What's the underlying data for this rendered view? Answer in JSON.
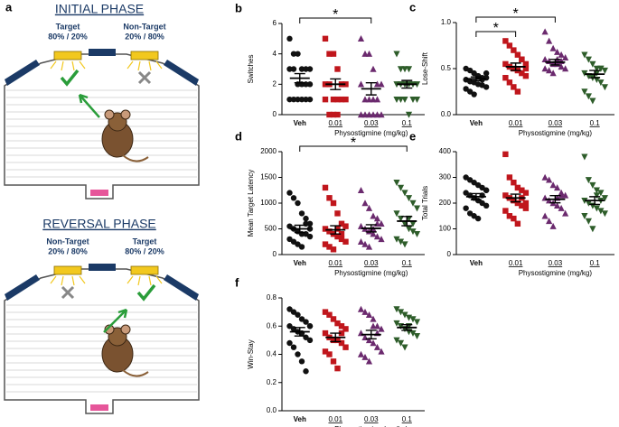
{
  "panel_a": {
    "letter": "a",
    "initial": {
      "title": "INITIAL PHASE",
      "left_label": "Target",
      "left_ratio": "80% / 20%",
      "right_label": "Non-Target",
      "right_ratio": "20% / 80%"
    },
    "reversal": {
      "title": "REVERSAL PHASE",
      "left_label": "Non-Target",
      "left_ratio": "20% / 80%",
      "right_label": "Target",
      "right_ratio": "80% / 20%"
    }
  },
  "chart_data": [
    {
      "type": "strip",
      "panel": "b",
      "ylabel": "Switches",
      "xlabel": "Physostigmine  (mg/kg)",
      "categories": [
        "Veh",
        "0.01",
        "0.03",
        "0.1"
      ],
      "colors": [
        "#111111",
        "#c0161c",
        "#6b2a6e",
        "#2e5d2a"
      ],
      "markers": [
        "circle",
        "square",
        "triangle",
        "triangle-down"
      ],
      "ylim": [
        0,
        6
      ],
      "yticks": [
        0,
        2,
        4,
        6
      ],
      "points": [
        [
          5,
          4,
          4,
          3,
          3,
          3,
          3,
          3,
          2,
          2,
          2,
          2,
          1,
          1,
          1,
          1,
          1,
          1
        ],
        [
          5,
          4,
          4,
          3,
          2,
          2,
          2,
          2,
          1,
          1,
          1,
          1,
          1,
          0,
          0,
          0
        ],
        [
          5,
          4,
          4,
          3,
          2,
          2,
          2,
          1,
          1,
          1,
          1,
          0,
          0,
          0,
          0,
          0,
          0
        ],
        [
          4,
          3,
          3,
          3,
          2,
          2,
          2,
          2,
          2,
          2,
          1,
          1,
          1,
          1,
          1,
          0
        ]
      ],
      "means": [
        2.4,
        2.0,
        1.7,
        2.0
      ],
      "sems": [
        0.3,
        0.35,
        0.4,
        0.25
      ],
      "annotations": [
        {
          "label": "*",
          "from": "Veh",
          "to": "0.03"
        }
      ]
    },
    {
      "type": "strip",
      "panel": "c",
      "ylabel": "Lose-Shift",
      "xlabel": "Physostigmine  (mg/kg)",
      "categories": [
        "Veh",
        "0.01",
        "0.03",
        "0.1"
      ],
      "colors": [
        "#111111",
        "#c0161c",
        "#6b2a6e",
        "#2e5d2a"
      ],
      "markers": [
        "circle",
        "square",
        "triangle",
        "triangle-down"
      ],
      "ylim": [
        0,
        1
      ],
      "yticks": [
        {
          "value": 0,
          "label": "0.0"
        },
        0.5,
        {
          "value": 1,
          "label": "1.0"
        }
      ],
      "points": [
        [
          0.5,
          0.48,
          0.45,
          0.42,
          0.4,
          0.4,
          0.38,
          0.36,
          0.35,
          0.33,
          0.32,
          0.3,
          0.28,
          0.25,
          0.22,
          0.42,
          0.38,
          0.45
        ],
        [
          0.8,
          0.75,
          0.7,
          0.65,
          0.6,
          0.55,
          0.55,
          0.52,
          0.5,
          0.48,
          0.45,
          0.42,
          0.4,
          0.35,
          0.3,
          0.25,
          0.6,
          0.5
        ],
        [
          0.9,
          0.8,
          0.72,
          0.68,
          0.65,
          0.62,
          0.6,
          0.58,
          0.55,
          0.55,
          0.52,
          0.5,
          0.5,
          0.48,
          0.45,
          0.6,
          0.58
        ],
        [
          0.65,
          0.6,
          0.55,
          0.5,
          0.5,
          0.48,
          0.45,
          0.42,
          0.4,
          0.38,
          0.35,
          0.3,
          0.25,
          0.2,
          0.15,
          0.45,
          0.5
        ]
      ],
      "means": [
        0.39,
        0.52,
        0.57,
        0.44
      ],
      "sems": [
        0.02,
        0.04,
        0.03,
        0.04
      ],
      "annotations": [
        {
          "label": "*",
          "from": "Veh",
          "to": "0.01"
        },
        {
          "label": "*",
          "from": "Veh",
          "to": "0.03"
        }
      ]
    },
    {
      "type": "strip",
      "panel": "d",
      "ylabel": "Mean Target Latency",
      "xlabel": "Physostigmine  (mg/kg)",
      "categories": [
        "Veh",
        "0.01",
        "0.03",
        "0.1"
      ],
      "colors": [
        "#111111",
        "#c0161c",
        "#6b2a6e",
        "#2e5d2a"
      ],
      "markers": [
        "circle",
        "square",
        "triangle",
        "triangle-down"
      ],
      "ylim": [
        0,
        2000
      ],
      "yticks": [
        0,
        500,
        1000,
        1500,
        2000
      ],
      "points": [
        [
          1200,
          1100,
          1000,
          800,
          700,
          600,
          550,
          500,
          450,
          400,
          400,
          350,
          300,
          250,
          200,
          150,
          600,
          500
        ],
        [
          1300,
          1100,
          1000,
          800,
          600,
          550,
          500,
          450,
          400,
          350,
          300,
          250,
          200,
          150,
          100,
          500,
          400
        ],
        [
          1250,
          1000,
          900,
          750,
          700,
          600,
          550,
          500,
          450,
          400,
          350,
          300,
          250,
          200,
          150,
          500,
          600
        ],
        [
          1400,
          1300,
          1200,
          1100,
          1000,
          900,
          800,
          700,
          600,
          500,
          450,
          400,
          300,
          250,
          200,
          700,
          600
        ]
      ],
      "means": [
        500,
        480,
        510,
        650
      ],
      "sems": [
        70,
        80,
        70,
        90
      ],
      "annotations": [
        {
          "label": "*",
          "from": "Veh",
          "to": "0.1"
        }
      ]
    },
    {
      "type": "strip",
      "panel": "e",
      "ylabel": "Total  Trials",
      "xlabel": "Physostigmine  (mg/kg)",
      "categories": [
        "Veh",
        "0.01",
        "0.03",
        "0.1"
      ],
      "colors": [
        "#111111",
        "#c0161c",
        "#6b2a6e",
        "#2e5d2a"
      ],
      "markers": [
        "circle",
        "square",
        "triangle",
        "triangle-down"
      ],
      "ylim": [
        0,
        400
      ],
      "yticks": [
        0,
        100,
        200,
        300,
        400
      ],
      "points": [
        [
          300,
          290,
          280,
          270,
          260,
          250,
          240,
          230,
          220,
          210,
          200,
          190,
          180,
          160,
          150,
          140,
          230,
          250
        ],
        [
          390,
          300,
          280,
          260,
          250,
          240,
          230,
          220,
          210,
          200,
          190,
          180,
          170,
          150,
          140,
          120,
          220,
          200
        ],
        [
          300,
          290,
          270,
          260,
          240,
          230,
          220,
          210,
          200,
          190,
          180,
          160,
          150,
          130,
          110,
          220,
          230
        ],
        [
          380,
          290,
          270,
          250,
          240,
          220,
          210,
          200,
          190,
          180,
          170,
          160,
          150,
          130,
          100,
          230,
          210
        ]
      ],
      "means": [
        225,
        220,
        215,
        210
      ],
      "sems": [
        12,
        15,
        14,
        15
      ],
      "annotations": []
    },
    {
      "type": "strip",
      "panel": "f",
      "ylabel": "Win-Stay",
      "xlabel": "Physostigmine  (mg/kg)",
      "categories": [
        "Veh",
        "0.01",
        "0.03",
        "0.1"
      ],
      "colors": [
        "#111111",
        "#c0161c",
        "#6b2a6e",
        "#2e5d2a"
      ],
      "markers": [
        "circle",
        "square",
        "triangle",
        "triangle-down"
      ],
      "ylim": [
        0,
        0.8
      ],
      "yticks": [
        {
          "value": 0,
          "label": "0.0"
        },
        0.2,
        0.4,
        0.6,
        0.8
      ],
      "points": [
        [
          0.72,
          0.7,
          0.68,
          0.65,
          0.63,
          0.6,
          0.6,
          0.58,
          0.56,
          0.55,
          0.52,
          0.5,
          0.48,
          0.45,
          0.4,
          0.35,
          0.28,
          0.6
        ],
        [
          0.7,
          0.68,
          0.65,
          0.62,
          0.6,
          0.58,
          0.55,
          0.52,
          0.5,
          0.5,
          0.48,
          0.45,
          0.42,
          0.4,
          0.35,
          0.3,
          0.55
        ],
        [
          0.72,
          0.7,
          0.68,
          0.65,
          0.6,
          0.58,
          0.55,
          0.52,
          0.5,
          0.48,
          0.45,
          0.42,
          0.4,
          0.38,
          0.35,
          0.6,
          0.55
        ],
        [
          0.72,
          0.7,
          0.68,
          0.66,
          0.65,
          0.63,
          0.62,
          0.6,
          0.58,
          0.56,
          0.55,
          0.53,
          0.5,
          0.48,
          0.45,
          0.6
        ]
      ],
      "means": [
        0.56,
        0.52,
        0.54,
        0.59
      ],
      "sems": [
        0.03,
        0.03,
        0.03,
        0.02
      ],
      "annotations": []
    }
  ]
}
